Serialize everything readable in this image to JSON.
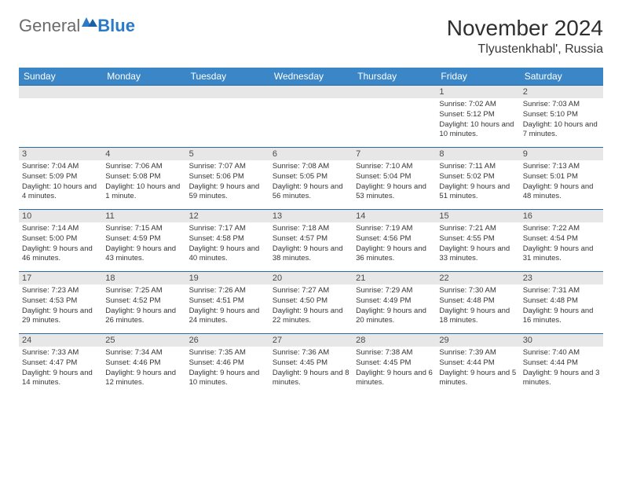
{
  "logo": {
    "text1": "General",
    "text2": "Blue"
  },
  "title": "November 2024",
  "location": "Tlyustenkhabl', Russia",
  "colors": {
    "header_bg": "#3a86c6",
    "header_text": "#ffffff",
    "row_border": "#2b6aa3",
    "daynum_bg": "#e7e7e7",
    "daynum_text": "#4a4a4a",
    "body_text": "#353535",
    "logo_gray": "#6b6b6b",
    "logo_blue": "#2b7ac8"
  },
  "dow": [
    "Sunday",
    "Monday",
    "Tuesday",
    "Wednesday",
    "Thursday",
    "Friday",
    "Saturday"
  ],
  "weeks": [
    [
      null,
      null,
      null,
      null,
      null,
      {
        "n": "1",
        "sunrise": "Sunrise: 7:02 AM",
        "sunset": "Sunset: 5:12 PM",
        "daylight": "Daylight: 10 hours and 10 minutes."
      },
      {
        "n": "2",
        "sunrise": "Sunrise: 7:03 AM",
        "sunset": "Sunset: 5:10 PM",
        "daylight": "Daylight: 10 hours and 7 minutes."
      }
    ],
    [
      {
        "n": "3",
        "sunrise": "Sunrise: 7:04 AM",
        "sunset": "Sunset: 5:09 PM",
        "daylight": "Daylight: 10 hours and 4 minutes."
      },
      {
        "n": "4",
        "sunrise": "Sunrise: 7:06 AM",
        "sunset": "Sunset: 5:08 PM",
        "daylight": "Daylight: 10 hours and 1 minute."
      },
      {
        "n": "5",
        "sunrise": "Sunrise: 7:07 AM",
        "sunset": "Sunset: 5:06 PM",
        "daylight": "Daylight: 9 hours and 59 minutes."
      },
      {
        "n": "6",
        "sunrise": "Sunrise: 7:08 AM",
        "sunset": "Sunset: 5:05 PM",
        "daylight": "Daylight: 9 hours and 56 minutes."
      },
      {
        "n": "7",
        "sunrise": "Sunrise: 7:10 AM",
        "sunset": "Sunset: 5:04 PM",
        "daylight": "Daylight: 9 hours and 53 minutes."
      },
      {
        "n": "8",
        "sunrise": "Sunrise: 7:11 AM",
        "sunset": "Sunset: 5:02 PM",
        "daylight": "Daylight: 9 hours and 51 minutes."
      },
      {
        "n": "9",
        "sunrise": "Sunrise: 7:13 AM",
        "sunset": "Sunset: 5:01 PM",
        "daylight": "Daylight: 9 hours and 48 minutes."
      }
    ],
    [
      {
        "n": "10",
        "sunrise": "Sunrise: 7:14 AM",
        "sunset": "Sunset: 5:00 PM",
        "daylight": "Daylight: 9 hours and 46 minutes."
      },
      {
        "n": "11",
        "sunrise": "Sunrise: 7:15 AM",
        "sunset": "Sunset: 4:59 PM",
        "daylight": "Daylight: 9 hours and 43 minutes."
      },
      {
        "n": "12",
        "sunrise": "Sunrise: 7:17 AM",
        "sunset": "Sunset: 4:58 PM",
        "daylight": "Daylight: 9 hours and 40 minutes."
      },
      {
        "n": "13",
        "sunrise": "Sunrise: 7:18 AM",
        "sunset": "Sunset: 4:57 PM",
        "daylight": "Daylight: 9 hours and 38 minutes."
      },
      {
        "n": "14",
        "sunrise": "Sunrise: 7:19 AM",
        "sunset": "Sunset: 4:56 PM",
        "daylight": "Daylight: 9 hours and 36 minutes."
      },
      {
        "n": "15",
        "sunrise": "Sunrise: 7:21 AM",
        "sunset": "Sunset: 4:55 PM",
        "daylight": "Daylight: 9 hours and 33 minutes."
      },
      {
        "n": "16",
        "sunrise": "Sunrise: 7:22 AM",
        "sunset": "Sunset: 4:54 PM",
        "daylight": "Daylight: 9 hours and 31 minutes."
      }
    ],
    [
      {
        "n": "17",
        "sunrise": "Sunrise: 7:23 AM",
        "sunset": "Sunset: 4:53 PM",
        "daylight": "Daylight: 9 hours and 29 minutes."
      },
      {
        "n": "18",
        "sunrise": "Sunrise: 7:25 AM",
        "sunset": "Sunset: 4:52 PM",
        "daylight": "Daylight: 9 hours and 26 minutes."
      },
      {
        "n": "19",
        "sunrise": "Sunrise: 7:26 AM",
        "sunset": "Sunset: 4:51 PM",
        "daylight": "Daylight: 9 hours and 24 minutes."
      },
      {
        "n": "20",
        "sunrise": "Sunrise: 7:27 AM",
        "sunset": "Sunset: 4:50 PM",
        "daylight": "Daylight: 9 hours and 22 minutes."
      },
      {
        "n": "21",
        "sunrise": "Sunrise: 7:29 AM",
        "sunset": "Sunset: 4:49 PM",
        "daylight": "Daylight: 9 hours and 20 minutes."
      },
      {
        "n": "22",
        "sunrise": "Sunrise: 7:30 AM",
        "sunset": "Sunset: 4:48 PM",
        "daylight": "Daylight: 9 hours and 18 minutes."
      },
      {
        "n": "23",
        "sunrise": "Sunrise: 7:31 AM",
        "sunset": "Sunset: 4:48 PM",
        "daylight": "Daylight: 9 hours and 16 minutes."
      }
    ],
    [
      {
        "n": "24",
        "sunrise": "Sunrise: 7:33 AM",
        "sunset": "Sunset: 4:47 PM",
        "daylight": "Daylight: 9 hours and 14 minutes."
      },
      {
        "n": "25",
        "sunrise": "Sunrise: 7:34 AM",
        "sunset": "Sunset: 4:46 PM",
        "daylight": "Daylight: 9 hours and 12 minutes."
      },
      {
        "n": "26",
        "sunrise": "Sunrise: 7:35 AM",
        "sunset": "Sunset: 4:46 PM",
        "daylight": "Daylight: 9 hours and 10 minutes."
      },
      {
        "n": "27",
        "sunrise": "Sunrise: 7:36 AM",
        "sunset": "Sunset: 4:45 PM",
        "daylight": "Daylight: 9 hours and 8 minutes."
      },
      {
        "n": "28",
        "sunrise": "Sunrise: 7:38 AM",
        "sunset": "Sunset: 4:45 PM",
        "daylight": "Daylight: 9 hours and 6 minutes."
      },
      {
        "n": "29",
        "sunrise": "Sunrise: 7:39 AM",
        "sunset": "Sunset: 4:44 PM",
        "daylight": "Daylight: 9 hours and 5 minutes."
      },
      {
        "n": "30",
        "sunrise": "Sunrise: 7:40 AM",
        "sunset": "Sunset: 4:44 PM",
        "daylight": "Daylight: 9 hours and 3 minutes."
      }
    ]
  ]
}
